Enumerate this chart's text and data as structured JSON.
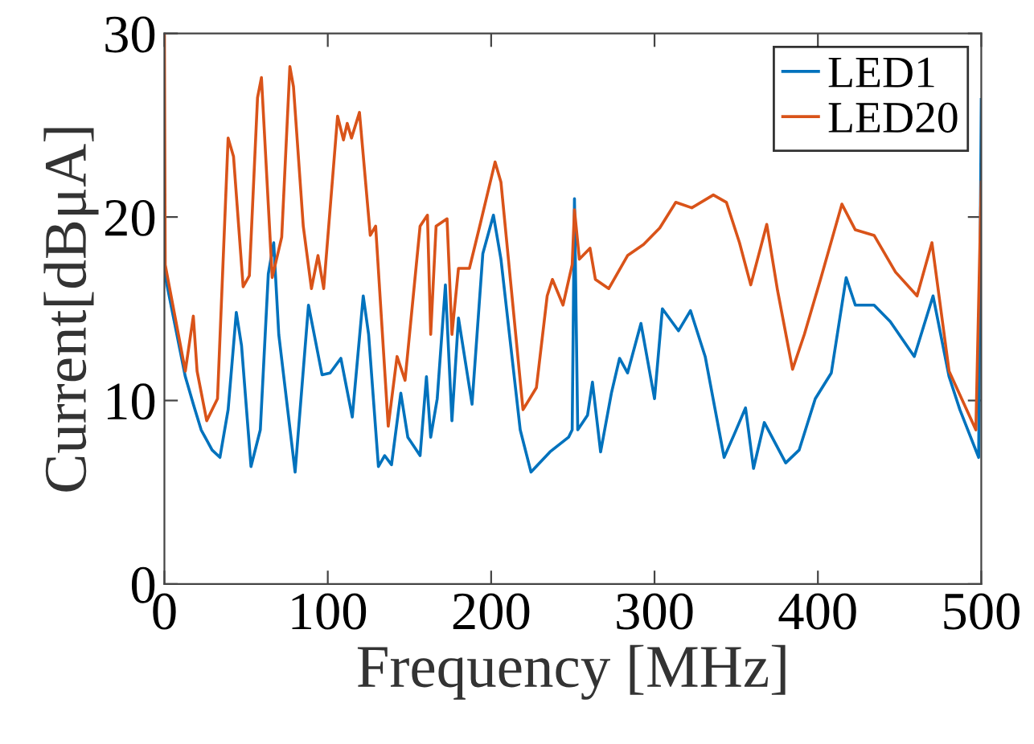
{
  "chart_data": {
    "type": "line",
    "xlabel": "Frequency [MHz]",
    "ylabel": "Current[dBμA]",
    "xlim": [
      0,
      500
    ],
    "ylim": [
      0,
      30
    ],
    "xticks": [
      0,
      100,
      200,
      300,
      400,
      500
    ],
    "yticks": [
      0,
      10,
      20,
      30
    ],
    "grid": false,
    "legend": "top right",
    "series": [
      {
        "name": "LED1",
        "color": "#0072bd",
        "x": [
          0,
          12.8,
          17.7,
          22.5,
          29.2,
          34,
          39,
          44,
          47.2,
          53,
          58.7,
          63.6,
          66.9,
          70,
          80,
          88.2,
          96.5,
          101.4,
          108,
          115,
          121.7,
          125,
          131,
          134.8,
          139,
          144.7,
          149,
          156.5,
          160.4,
          163,
          167,
          172,
          176,
          180,
          188.3,
          194.9,
          201.4,
          206,
          217.8,
          224.4,
          236,
          247.4,
          249.6,
          251,
          253,
          259,
          262,
          267,
          273.6,
          278.6,
          283.5,
          291.7,
          300,
          304.8,
          314.7,
          322,
          331,
          342.6,
          349,
          355.7,
          360.6,
          367.2,
          380.3,
          388.5,
          398.4,
          408.2,
          417.3,
          422.9,
          434.4,
          444.3,
          459,
          470.5,
          480.3,
          486.9,
          498.4,
          500
        ],
        "values": [
          17,
          11.3,
          9.8,
          8.4,
          7.3,
          6.9,
          9.5,
          14.8,
          13.0,
          6.4,
          8.4,
          16.9,
          18.6,
          13.6,
          6.1,
          15.2,
          11.4,
          11.5,
          12.3,
          9.1,
          15.7,
          13.6,
          6.4,
          7.0,
          6.5,
          10.4,
          8.0,
          7.0,
          11.3,
          8.0,
          10.1,
          16.3,
          8.9,
          14.5,
          9.8,
          18.0,
          20.1,
          17.7,
          8.4,
          6.1,
          7.2,
          8.0,
          8.4,
          21.0,
          8.4,
          9.2,
          11.0,
          7.2,
          10.4,
          12.3,
          11.5,
          14.2,
          10.1,
          15.0,
          13.8,
          14.9,
          12.4,
          6.9,
          8.2,
          9.6,
          6.3,
          8.8,
          6.6,
          7.3,
          10.1,
          11.5,
          16.7,
          15.2,
          15.2,
          14.3,
          12.4,
          15.7,
          11.3,
          9.5,
          6.9,
          26.4
        ]
      },
      {
        "name": "LED20",
        "color": "#d95319",
        "x": [
          0,
          0.5,
          12.8,
          17.7,
          20,
          25.9,
          32.5,
          39,
          42.3,
          48.2,
          52,
          57,
          59.4,
          66,
          71.8,
          76.8,
          79,
          85,
          90,
          94,
          97.5,
          106,
          109.6,
          111.9,
          114.5,
          119.4,
          126,
          129.3,
          137,
          142.4,
          147.3,
          156.5,
          161,
          163,
          166.3,
          173,
          176,
          180,
          186.7,
          193,
          202.4,
          206,
          219.5,
          227.7,
          234.3,
          237.5,
          244,
          249.6,
          251,
          254,
          260.5,
          263.8,
          272,
          283.5,
          293.3,
          303.2,
          313,
          322.8,
          336,
          344,
          352,
          358.9,
          368.7,
          375.3,
          384.5,
          391.7,
          401.6,
          414.7,
          422.9,
          434.4,
          447.5,
          460.7,
          469.8,
          480.3,
          496.7,
          500
        ],
        "values": [
          30,
          17.4,
          11.6,
          14.6,
          11.6,
          8.9,
          10.1,
          24.3,
          23.3,
          16.2,
          16.8,
          26.5,
          27.6,
          16.7,
          18.9,
          28.2,
          27.1,
          19.5,
          16.1,
          17.9,
          16.1,
          25.5,
          24.2,
          25.1,
          24.3,
          25.7,
          19.0,
          19.5,
          8.6,
          12.4,
          11.1,
          19.5,
          20.1,
          13.6,
          19.5,
          19.9,
          13.6,
          17.2,
          17.2,
          19.5,
          23.0,
          21.9,
          9.5,
          10.7,
          15.7,
          16.6,
          15.2,
          17.4,
          20.4,
          17.7,
          18.3,
          16.6,
          16.1,
          17.9,
          18.5,
          19.4,
          20.8,
          20.5,
          21.2,
          20.8,
          18.6,
          16.3,
          19.6,
          16.0,
          11.7,
          13.6,
          16.6,
          20.7,
          19.3,
          19.0,
          17.0,
          15.7,
          18.6,
          11.6,
          8.4,
          21.9
        ]
      }
    ]
  }
}
